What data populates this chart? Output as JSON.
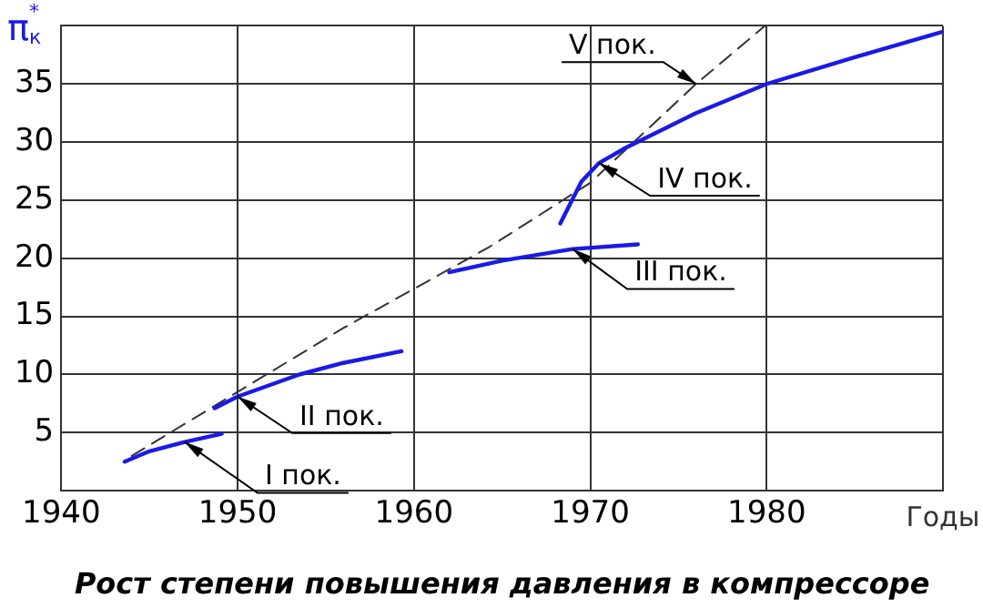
{
  "chart_data": {
    "type": "line",
    "title": "Рост степени повышения давления в компрессоре",
    "xlabel": "Годы",
    "ylabel": "π$_{к}$$^{*}$",
    "xlim": [
      1940,
      1990
    ],
    "xticks": [
      1940,
      1950,
      1960,
      1970,
      1980,
      {
        "value": 1990,
        "label": null
      }
    ],
    "ylim": [
      0,
      40
    ],
    "yticks": [
      5,
      10,
      15,
      20,
      25,
      30,
      35,
      {
        "value": 40,
        "label": null
      }
    ],
    "grid": true,
    "legend": false,
    "marker": "none",
    "series": [
      {
        "name": "I пок.",
        "color": "#1a1ae6",
        "x": [
          1943.6,
          1945,
          1947,
          1949.1
        ],
        "values": [
          2.5,
          3.4,
          4.2,
          4.9
        ]
      },
      {
        "name": "II пок.",
        "color": "#1a1ae6",
        "x": [
          1948.7,
          1950,
          1953.5,
          1956,
          1959.3
        ],
        "values": [
          7.1,
          8.1,
          10,
          11,
          12
        ]
      },
      {
        "name": "III пок.",
        "color": "#1a1ae6",
        "x": [
          1962,
          1965,
          1969,
          1972.7
        ],
        "values": [
          18.8,
          19.8,
          20.8,
          21.2
        ]
      },
      {
        "name": "IV пок.",
        "color": "#1a1ae6",
        "x": [
          1968.3,
          1969.5,
          1970.5,
          1972,
          1976,
          1980,
          1985,
          1990
        ],
        "values": [
          23,
          26.6,
          28.2,
          29.5,
          32.5,
          35,
          37.3,
          39.5
        ]
      },
      {
        "name": "V пок.",
        "color": "#333333",
        "line_style": "dashed",
        "x": [
          1944,
          1950,
          1956,
          1964.3,
          1970,
          1976,
          1979.9
        ],
        "values": [
          3,
          8.5,
          14,
          21,
          26.5,
          35,
          40
        ]
      }
    ]
  }
}
